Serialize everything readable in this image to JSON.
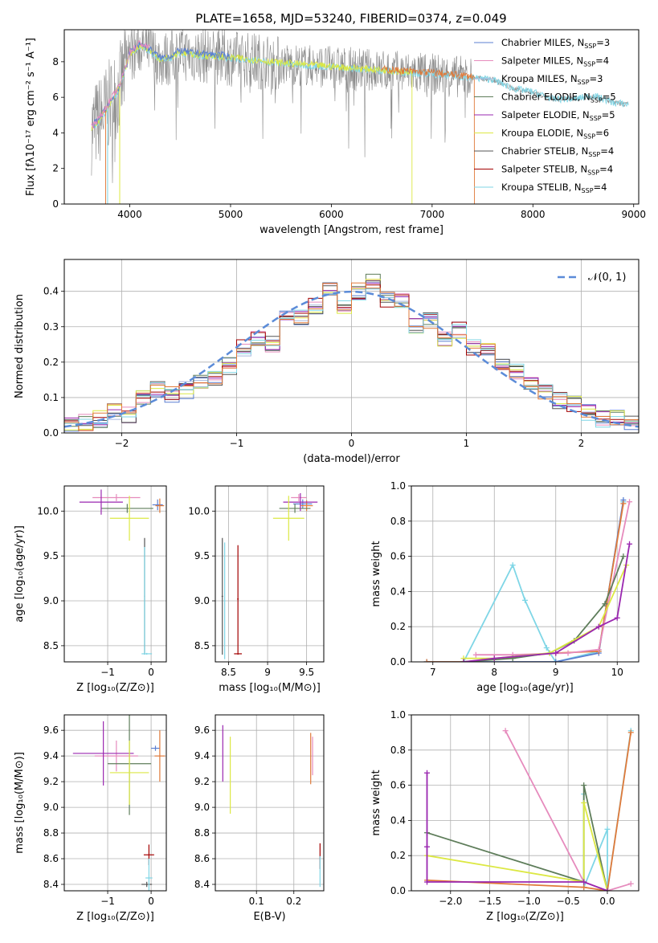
{
  "title": "PLATE=1658, MJD=53240, FIBERID=0374, z=0.049",
  "palette": [
    "#5b7fd1",
    "#e68bbd",
    "#a8b8e0",
    "#5e7d5a",
    "#9a27b0",
    "#dce843",
    "#555555",
    "#a30000",
    "#7fd6e6",
    "#e07a3a",
    "#8a8a8a"
  ],
  "chart_data": [
    {
      "id": "spectrum",
      "type": "line",
      "xlabel": "wavelength [Angstrom, rest frame]",
      "ylabel": "Flux [fλ10⁻¹⁷ erg cm⁻² s⁻¹ A⁻¹]",
      "xlim": [
        3350,
        9050
      ],
      "ylim": [
        0,
        9.8
      ],
      "xticks": [
        4000,
        5000,
        6000,
        7000,
        8000,
        9000
      ],
      "yticks": [
        0,
        2,
        4,
        6,
        8
      ],
      "grid": false,
      "legend_position": "upper-right",
      "data_profile": {
        "x": [
          3620,
          3700,
          3800,
          3900,
          4000,
          4100,
          4200,
          4300,
          4400,
          4500,
          4600,
          4800,
          5000,
          5200,
          5500,
          6000,
          6500,
          7000,
          7400,
          7600,
          7800,
          8000,
          8200,
          8400,
          8600,
          8800,
          8950
        ],
        "y": [
          4.2,
          4.7,
          5.6,
          6.5,
          8.4,
          8.9,
          8.6,
          8.1,
          8.2,
          8.5,
          8.4,
          8.3,
          8.2,
          8.1,
          7.9,
          7.7,
          7.5,
          7.3,
          7.1,
          7.0,
          6.5,
          6.3,
          5.9,
          5.9,
          6.1,
          5.7,
          5.6
        ]
      },
      "series": [
        {
          "name": "Chabrier MILES, N_SSP=3"
        },
        {
          "name": "Salpeter MILES, N_SSP=4"
        },
        {
          "name": "Kroupa MILES, N_SSP=3"
        },
        {
          "name": "Chabrier ELODIE, N_SSP=5"
        },
        {
          "name": "Salpeter ELODIE, N_SSP=5"
        },
        {
          "name": "Kroupa ELODIE, N_SSP=6"
        },
        {
          "name": "Chabrier STELIB, N_SSP=4"
        },
        {
          "name": "Salpeter STELIB, N_SSP=4"
        },
        {
          "name": "Kroupa STELIB, N_SSP=4"
        }
      ],
      "legend_labels": [
        {
          "pre": "Chabrier MILES, N",
          "sub": "SSP",
          "post": "=3"
        },
        {
          "pre": "Salpeter MILES, N",
          "sub": "SSP",
          "post": "=4"
        },
        {
          "pre": "Kroupa MILES, N",
          "sub": "SSP",
          "post": "=3"
        },
        {
          "pre": "Chabrier ELODIE, N",
          "sub": "SSP",
          "post": "=5"
        },
        {
          "pre": "Salpeter ELODIE, N",
          "sub": "SSP",
          "post": "=5"
        },
        {
          "pre": "Kroupa ELODIE, N",
          "sub": "SSP",
          "post": "=6"
        },
        {
          "pre": "Chabrier STELIB, N",
          "sub": "SSP",
          "post": "=4"
        },
        {
          "pre": "Salpeter STELIB, N",
          "sub": "SSP",
          "post": "=4"
        },
        {
          "pre": "Kroupa STELIB, N",
          "sub": "SSP",
          "post": "=4"
        }
      ]
    },
    {
      "id": "residuals",
      "type": "line",
      "xlabel": "(data-model)/error",
      "ylabel": "Normed distribution",
      "xlim": [
        -2.5,
        2.5
      ],
      "ylim": [
        0,
        0.49
      ],
      "xticks": [
        -2,
        -1,
        0,
        1,
        2
      ],
      "yticks": [
        0.0,
        0.1,
        0.2,
        0.3,
        0.4
      ],
      "grid": true,
      "legend": "𝒩(0, 1)",
      "legend_position": "upper-right",
      "histogram_profile": {
        "bin_width": 0.125,
        "centers": [
          -2.4375,
          -2.3125,
          -2.1875,
          -2.0625,
          -1.9375,
          -1.8125,
          -1.6875,
          -1.5625,
          -1.4375,
          -1.3125,
          -1.1875,
          -1.0625,
          -0.9375,
          -0.8125,
          -0.6875,
          -0.5625,
          -0.4375,
          -0.3125,
          -0.1875,
          -0.0625,
          0.0625,
          0.1875,
          0.3125,
          0.4375,
          0.5625,
          0.6875,
          0.8125,
          0.9375,
          1.0625,
          1.1875,
          1.3125,
          1.4375,
          1.5625,
          1.6875,
          1.8125,
          1.9375,
          2.0625,
          2.1875,
          2.3125,
          2.4375
        ],
        "values": [
          0.03,
          0.03,
          0.04,
          0.06,
          0.05,
          0.1,
          0.12,
          0.11,
          0.12,
          0.14,
          0.16,
          0.19,
          0.24,
          0.27,
          0.25,
          0.34,
          0.33,
          0.36,
          0.41,
          0.36,
          0.4,
          0.43,
          0.38,
          0.37,
          0.3,
          0.32,
          0.27,
          0.29,
          0.24,
          0.24,
          0.19,
          0.17,
          0.14,
          0.12,
          0.09,
          0.08,
          0.06,
          0.04,
          0.04,
          0.03
        ]
      }
    },
    {
      "id": "age-vs-Z",
      "type": "scatter",
      "xlabel": "Z [log₁₀(Z/Z⊙)]",
      "ylabel": "age  [log₁₀(age/yr)]",
      "xlim": [
        -2.0,
        0.35
      ],
      "ylim": [
        8.32,
        10.28
      ],
      "xticks": [
        -1,
        0
      ],
      "yticks": [
        8.5,
        9.0,
        9.5,
        10.0
      ],
      "grid": true,
      "points": [
        {
          "x": 0.15,
          "y": 10.07,
          "xerr": 0.12,
          "yerr": 0.06,
          "c": 0
        },
        {
          "x": -0.8,
          "y": 10.15,
          "xerr": 0.55,
          "yerr": 0.04,
          "c": 1
        },
        {
          "x": 0.2,
          "y": 10.06,
          "xerr": 0.1,
          "yerr": 0.08,
          "c": 9
        },
        {
          "x": -0.55,
          "y": 10.03,
          "xerr": 0.6,
          "yerr": 0.05,
          "c": 3
        },
        {
          "x": -1.15,
          "y": 10.1,
          "xerr": 0.5,
          "yerr": 0.14,
          "c": 4
        },
        {
          "x": -0.5,
          "y": 9.92,
          "xerr": 0.45,
          "yerr": 0.25,
          "c": 5
        },
        {
          "x": -0.15,
          "y": 9.05,
          "xerr": 0.01,
          "yerr": 0.65,
          "c": 6
        },
        {
          "x": -0.1,
          "y": 8.41,
          "xerr": 0.12,
          "yerr": 0.01,
          "c": 8
        },
        {
          "x": -0.15,
          "y": 9.0,
          "xerr": 0.01,
          "yerr": 0.6,
          "c": 8
        }
      ]
    },
    {
      "id": "age-vs-mass",
      "type": "scatter",
      "xlabel": "mass [log₁₀(M/M⊙)]",
      "ylabel": "",
      "xlim": [
        8.33,
        9.72
      ],
      "ylim": [
        8.32,
        10.28
      ],
      "xticks": [
        8.5,
        9.0,
        9.5
      ],
      "yticks": [
        8.5,
        9.0,
        9.5,
        10.0
      ],
      "grid": true,
      "points": [
        {
          "x": 9.45,
          "y": 10.08,
          "xerr": 0.12,
          "yerr": 0.05,
          "c": 0
        },
        {
          "x": 9.4,
          "y": 10.15,
          "xerr": 0.1,
          "yerr": 0.04,
          "c": 1
        },
        {
          "x": 9.5,
          "y": 10.06,
          "xerr": 0.08,
          "yerr": 0.06,
          "c": 9
        },
        {
          "x": 9.35,
          "y": 10.03,
          "xerr": 0.2,
          "yerr": 0.05,
          "c": 3
        },
        {
          "x": 9.42,
          "y": 10.1,
          "xerr": 0.22,
          "yerr": 0.1,
          "c": 4
        },
        {
          "x": 9.27,
          "y": 9.92,
          "xerr": 0.2,
          "yerr": 0.25,
          "c": 5
        },
        {
          "x": 8.42,
          "y": 9.05,
          "xerr": 0.01,
          "yerr": 0.65,
          "c": 6
        },
        {
          "x": 8.62,
          "y": 8.41,
          "xerr": 0.05,
          "yerr": 0.01,
          "c": 7
        },
        {
          "x": 8.62,
          "y": 9.02,
          "xerr": 0.01,
          "yerr": 0.6,
          "c": 7
        },
        {
          "x": 8.45,
          "y": 9.0,
          "xerr": 0.01,
          "yerr": 0.65,
          "c": 8
        }
      ]
    },
    {
      "id": "massweight-vs-age",
      "type": "line",
      "xlabel": "age  [log₁₀(age/yr)]",
      "ylabel": "mass weight",
      "xlim": [
        6.65,
        10.35
      ],
      "ylim": [
        0,
        1.0
      ],
      "xticks": [
        7,
        8,
        9,
        10
      ],
      "yticks": [
        0.0,
        0.2,
        0.4,
        0.6,
        0.8,
        1.0
      ],
      "grid": true,
      "series": [
        {
          "c": 8,
          "x": [
            6.9,
            7.5,
            8.3,
            8.5,
            8.85,
            9.0,
            9.7,
            10.1
          ],
          "y": [
            0.0,
            0.0,
            0.55,
            0.35,
            0.08,
            0.0,
            0.06,
            0.91
          ]
        },
        {
          "c": 0,
          "x": [
            6.9,
            7.5,
            9.0,
            9.7,
            10.1
          ],
          "y": [
            0.0,
            0.0,
            0.0,
            0.05,
            0.92
          ]
        },
        {
          "c": 9,
          "x": [
            6.9,
            7.5,
            9.0,
            9.7,
            10.1
          ],
          "y": [
            0.0,
            0.0,
            0.05,
            0.06,
            0.9
          ]
        },
        {
          "c": 1,
          "x": [
            7.7,
            8.3,
            9.2,
            9.7,
            10.2
          ],
          "y": [
            0.04,
            0.04,
            0.05,
            0.07,
            0.91
          ]
        },
        {
          "c": 3,
          "x": [
            7.5,
            8.3,
            8.9,
            9.3,
            9.8,
            10.1
          ],
          "y": [
            0.0,
            0.02,
            0.05,
            0.12,
            0.33,
            0.6
          ]
        },
        {
          "c": 5,
          "x": [
            7.5,
            8.0,
            8.9,
            9.7,
            10.15
          ],
          "y": [
            0.02,
            0.02,
            0.05,
            0.2,
            0.55
          ]
        },
        {
          "c": 4,
          "x": [
            7.5,
            8.0,
            9.0,
            9.7,
            10.0,
            10.2
          ],
          "y": [
            0.0,
            0.02,
            0.05,
            0.2,
            0.25,
            0.67
          ]
        }
      ]
    },
    {
      "id": "mass-vs-Z",
      "type": "scatter",
      "xlabel": "Z [log₁₀(Z/Z⊙)]",
      "ylabel": "mass [log₁₀(M/M⊙)]",
      "xlim": [
        -2.0,
        0.35
      ],
      "ylim": [
        8.35,
        9.72
      ],
      "xticks": [
        -1,
        0
      ],
      "yticks": [
        8.4,
        8.6,
        8.8,
        9.0,
        9.2,
        9.4,
        9.6
      ],
      "grid": true,
      "points": [
        {
          "x": 0.1,
          "y": 9.46,
          "xerr": 0.1,
          "yerr": 0.02,
          "c": 0
        },
        {
          "x": -0.8,
          "y": 9.4,
          "xerr": 0.5,
          "yerr": 0.12,
          "c": 1
        },
        {
          "x": 0.2,
          "y": 9.4,
          "xerr": 0.12,
          "yerr": 0.2,
          "c": 9
        },
        {
          "x": -0.5,
          "y": 9.34,
          "xerr": 0.5,
          "yerr": 0.4,
          "c": 3
        },
        {
          "x": -1.1,
          "y": 9.42,
          "xerr": 0.7,
          "yerr": 0.25,
          "c": 4
        },
        {
          "x": -0.5,
          "y": 9.27,
          "xerr": 0.45,
          "yerr": 0.25,
          "c": 5
        },
        {
          "x": -0.1,
          "y": 8.4,
          "xerr": 0.12,
          "yerr": 0.02,
          "c": 6
        },
        {
          "x": -0.05,
          "y": 8.63,
          "xerr": 0.12,
          "yerr": 0.08,
          "c": 7
        },
        {
          "x": -0.05,
          "y": 8.45,
          "xerr": 0.08,
          "yerr": 0.15,
          "c": 8
        }
      ]
    },
    {
      "id": "mass-vs-EBV",
      "type": "scatter",
      "xlabel": "E(B-V)",
      "ylabel": "",
      "xlim": [
        -0.01,
        0.28
      ],
      "ylim": [
        8.35,
        9.72
      ],
      "xticks": [
        0.1,
        0.2
      ],
      "yticks": [
        8.4,
        8.6,
        8.8,
        9.0,
        9.2,
        9.4,
        9.6
      ],
      "grid": true,
      "points": [
        {
          "x": 0.245,
          "y": 9.38,
          "xerr": 0.0,
          "yerr": 0.2,
          "c": 9
        },
        {
          "x": 0.25,
          "y": 9.4,
          "xerr": 0.0,
          "yerr": 0.15,
          "c": 1
        },
        {
          "x": 0.01,
          "y": 9.42,
          "xerr": 0.0,
          "yerr": 0.22,
          "c": 4
        },
        {
          "x": 0.03,
          "y": 9.25,
          "xerr": 0.0,
          "yerr": 0.3,
          "c": 5
        },
        {
          "x": 0.27,
          "y": 8.62,
          "xerr": 0.0,
          "yerr": 0.1,
          "c": 7
        },
        {
          "x": 0.27,
          "y": 8.5,
          "xerr": 0.0,
          "yerr": 0.12,
          "c": 8
        }
      ]
    },
    {
      "id": "massweight-vs-Z",
      "type": "line",
      "xlabel": "Z [log₁₀(Z/Z⊙)]",
      "ylabel": "mass weight",
      "xlim": [
        -2.5,
        0.4
      ],
      "ylim": [
        0,
        1.0
      ],
      "xticks": [
        -2.0,
        -1.5,
        -1.0,
        -0.5,
        0.0
      ],
      "yticks": [
        0.0,
        0.2,
        0.4,
        0.6,
        0.8,
        1.0
      ],
      "grid": true,
      "series": [
        {
          "c": 1,
          "x": [
            -1.3,
            -0.3,
            0.0,
            0.3
          ],
          "y": [
            0.91,
            0.05,
            0.0,
            0.04
          ]
        },
        {
          "c": 8,
          "x": [
            -0.3,
            -0.3,
            0.0,
            0.0,
            0.3
          ],
          "y": [
            0.55,
            0.02,
            0.35,
            0.0,
            0.91
          ]
        },
        {
          "c": 9,
          "x": [
            -2.3,
            -0.3,
            0.0,
            0.3
          ],
          "y": [
            0.06,
            0.02,
            0.0,
            0.9
          ]
        },
        {
          "c": 3,
          "x": [
            -2.3,
            -0.3,
            -0.3,
            0.0
          ],
          "y": [
            0.33,
            0.05,
            0.6,
            0.0
          ]
        },
        {
          "c": 5,
          "x": [
            -2.3,
            -0.3,
            -0.3,
            0.0
          ],
          "y": [
            0.2,
            0.05,
            0.5,
            0.0
          ]
        },
        {
          "c": 4,
          "x": [
            -2.3,
            -2.3,
            -2.3,
            -0.3,
            0.0
          ],
          "y": [
            0.67,
            0.25,
            0.05,
            0.05,
            0.0
          ]
        }
      ]
    }
  ]
}
